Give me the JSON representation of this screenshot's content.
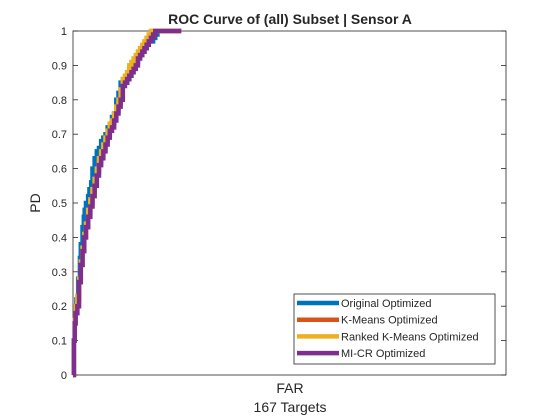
{
  "chart_data": {
    "type": "line",
    "title": "ROC Curve of (all) Subset | Sensor A",
    "xlabel": "FAR",
    "xlabel_sub": "167 Targets",
    "ylabel": "PD",
    "xlim": [
      0,
      1
    ],
    "ylim": [
      0,
      1
    ],
    "x_ticks_shown": false,
    "y_ticks": [
      "0",
      "0.1",
      "0.2",
      "0.3",
      "0.4",
      "0.5",
      "0.6",
      "0.7",
      "0.8",
      "0.9",
      "1"
    ],
    "grid": false,
    "legend_position": "bottom-right",
    "series": [
      {
        "name": "Original Optimized",
        "color": "#0072BD",
        "x": [
          0,
          0.002,
          0.004,
          0.006,
          0.008,
          0.012,
          0.016,
          0.018,
          0.022,
          0.025,
          0.027,
          0.03,
          0.035,
          0.038,
          0.042,
          0.045,
          0.05,
          0.055,
          0.06,
          0.065,
          0.07,
          0.075,
          0.08,
          0.085,
          0.09,
          0.095,
          0.1,
          0.105,
          0.11,
          0.115,
          0.12,
          0.125,
          0.13,
          0.135,
          0.14,
          0.145,
          0.15,
          0.155,
          0.16,
          0.165,
          0.17,
          0.175,
          0.18,
          0.185,
          0.19,
          0.195,
          0.2,
          0.205,
          0.21,
          0.215,
          0.22,
          0.225,
          0.23,
          0.235,
          0.24,
          0.245,
          0.25
        ],
        "y": [
          0,
          0.1,
          0.16,
          0.2,
          0.22,
          0.28,
          0.34,
          0.38,
          0.43,
          0.46,
          0.48,
          0.5,
          0.52,
          0.54,
          0.56,
          0.6,
          0.63,
          0.65,
          0.66,
          0.68,
          0.69,
          0.7,
          0.72,
          0.73,
          0.75,
          0.76,
          0.8,
          0.82,
          0.85,
          0.86,
          0.85,
          0.86,
          0.88,
          0.89,
          0.9,
          0.91,
          0.93,
          0.94,
          0.94,
          0.95,
          0.96,
          0.97,
          0.97,
          0.98,
          0.99,
          1,
          1,
          1,
          1,
          1,
          1,
          1,
          1,
          1,
          1,
          1,
          1
        ]
      },
      {
        "name": "K-Means Optimized",
        "color": "#D95319",
        "x": [
          0,
          0.002,
          0.004,
          0.006,
          0.01,
          0.014,
          0.018,
          0.022,
          0.026,
          0.03,
          0.035,
          0.04,
          0.045,
          0.05,
          0.055,
          0.06,
          0.065,
          0.07,
          0.075,
          0.08,
          0.085,
          0.09,
          0.095,
          0.1,
          0.105,
          0.11,
          0.115,
          0.12,
          0.125,
          0.13,
          0.135,
          0.14,
          0.145,
          0.15,
          0.155,
          0.16,
          0.165,
          0.17,
          0.175,
          0.18,
          0.185,
          0.19,
          0.195,
          0.2,
          0.21,
          0.22,
          0.23,
          0.24,
          0.25
        ],
        "y": [
          0,
          0.1,
          0.15,
          0.18,
          0.22,
          0.27,
          0.32,
          0.37,
          0.4,
          0.43,
          0.47,
          0.5,
          0.53,
          0.56,
          0.59,
          0.62,
          0.64,
          0.66,
          0.68,
          0.7,
          0.72,
          0.73,
          0.75,
          0.77,
          0.79,
          0.82,
          0.85,
          0.86,
          0.87,
          0.89,
          0.9,
          0.91,
          0.92,
          0.93,
          0.94,
          0.95,
          0.96,
          0.97,
          0.98,
          0.99,
          1,
          1,
          1,
          1,
          1,
          1,
          1,
          1,
          1
        ]
      },
      {
        "name": "Ranked K-Means Optimized",
        "color": "#EDB120",
        "x": [
          0,
          0.002,
          0.004,
          0.006,
          0.01,
          0.014,
          0.018,
          0.022,
          0.026,
          0.03,
          0.035,
          0.04,
          0.045,
          0.05,
          0.055,
          0.06,
          0.065,
          0.07,
          0.075,
          0.08,
          0.085,
          0.09,
          0.095,
          0.1,
          0.105,
          0.11,
          0.115,
          0.12,
          0.125,
          0.13,
          0.135,
          0.14,
          0.145,
          0.15,
          0.155,
          0.16,
          0.165,
          0.17,
          0.175,
          0.18,
          0.185,
          0.19,
          0.2,
          0.21,
          0.22,
          0.23,
          0.24,
          0.25
        ],
        "y": [
          0,
          0.1,
          0.16,
          0.2,
          0.23,
          0.28,
          0.33,
          0.37,
          0.41,
          0.44,
          0.48,
          0.51,
          0.54,
          0.57,
          0.6,
          0.63,
          0.65,
          0.67,
          0.69,
          0.71,
          0.73,
          0.74,
          0.76,
          0.78,
          0.8,
          0.83,
          0.86,
          0.87,
          0.88,
          0.9,
          0.91,
          0.92,
          0.93,
          0.94,
          0.95,
          0.96,
          0.97,
          0.98,
          0.99,
          1,
          1,
          1,
          1,
          1,
          1,
          1,
          1,
          1
        ]
      },
      {
        "name": "MI-CR Optimized",
        "color": "#7E2F8E",
        "x": [
          0,
          0.002,
          0.004,
          0.006,
          0.01,
          0.014,
          0.018,
          0.022,
          0.026,
          0.03,
          0.035,
          0.04,
          0.045,
          0.05,
          0.055,
          0.06,
          0.065,
          0.07,
          0.075,
          0.08,
          0.085,
          0.09,
          0.095,
          0.1,
          0.105,
          0.11,
          0.115,
          0.12,
          0.125,
          0.13,
          0.135,
          0.14,
          0.145,
          0.15,
          0.155,
          0.16,
          0.165,
          0.17,
          0.175,
          0.18,
          0.185,
          0.19,
          0.195,
          0.2,
          0.21,
          0.22,
          0.23,
          0.24,
          0.25
        ],
        "y": [
          0,
          0.1,
          0.15,
          0.18,
          0.2,
          0.27,
          0.32,
          0.36,
          0.4,
          0.43,
          0.46,
          0.49,
          0.52,
          0.55,
          0.58,
          0.61,
          0.63,
          0.65,
          0.67,
          0.69,
          0.71,
          0.72,
          0.74,
          0.76,
          0.78,
          0.8,
          0.84,
          0.85,
          0.86,
          0.87,
          0.88,
          0.89,
          0.9,
          0.92,
          0.93,
          0.94,
          0.95,
          0.96,
          0.97,
          0.98,
          0.99,
          1,
          1,
          1,
          1,
          1,
          1,
          1,
          1
        ]
      }
    ]
  }
}
